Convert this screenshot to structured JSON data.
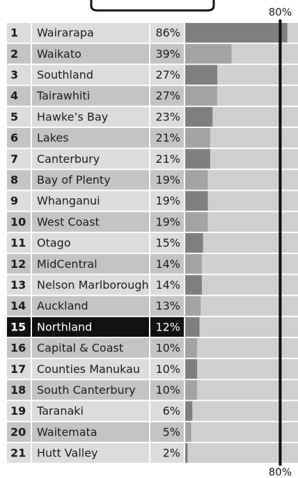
{
  "chart_data": {
    "type": "bar",
    "ranks": [
      "1",
      "2",
      "3",
      "4",
      "5",
      "6",
      "7",
      "8",
      "9",
      "10",
      "11",
      "12",
      "13",
      "14",
      "15",
      "16",
      "17",
      "18",
      "19",
      "20",
      "21"
    ],
    "categories": [
      "Wairarapa",
      "Waikato",
      "Southland",
      "Tairawhiti",
      "Hawke’s Bay",
      "Lakes",
      "Canterbury",
      "Bay of Plenty",
      "Whanganui",
      "West Coast",
      "Otago",
      "MidCentral",
      "Nelson Marlborough",
      "Auckland",
      "Northland",
      "Capital & Coast",
      "Counties Manukau",
      "South Canterbury",
      "Taranaki",
      "Waitemata",
      "Hutt Valley"
    ],
    "values": [
      86,
      39,
      27,
      27,
      23,
      21,
      21,
      19,
      19,
      19,
      15,
      14,
      14,
      13,
      12,
      10,
      10,
      10,
      6,
      5,
      2
    ],
    "value_labels": [
      "86%",
      "39%",
      "27%",
      "27%",
      "23%",
      "21%",
      "21%",
      "19%",
      "19%",
      "19%",
      "15%",
      "14%",
      "14%",
      "13%",
      "12%",
      "10%",
      "10%",
      "10%",
      "6%",
      "5%",
      "2%"
    ],
    "xlim": [
      0,
      95
    ],
    "target": {
      "value": 80,
      "label": "80%"
    },
    "highlight_index": 14,
    "colors": [
      "#7f7f7f",
      "#a3a3a3"
    ]
  }
}
